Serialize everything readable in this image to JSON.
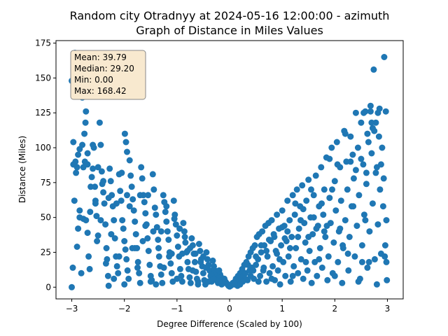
{
  "chart_data": {
    "type": "scatter",
    "title": "Random city Otradnyy at 2024-05-16 12:00:00  - azimuth",
    "subtitle": "Graph of Distance in Miles Values",
    "xlabel": "Degree Difference (Scaled by 100)",
    "ylabel": "Distance (Miles)",
    "xlim": [
      -3.3,
      3.3
    ],
    "ylim": [
      -8.4,
      176.8
    ],
    "xticks": [
      -3,
      -2,
      -1,
      0,
      1,
      2,
      3
    ],
    "yticks": [
      0,
      25,
      50,
      75,
      100,
      125,
      150,
      175
    ],
    "grid": false,
    "marker_color": "#1f77b4",
    "stats_box": {
      "lines": [
        "Mean: 39.79",
        "Median: 29.20",
        "Min: 0.00",
        "Max: 168.42"
      ],
      "facecolor": "#f8e9cf",
      "edgecolor": "#888888",
      "placement": "top-left"
    },
    "points": [
      [
        -3.0,
        0.0
      ],
      [
        -2.98,
        14
      ],
      [
        -3.0,
        148
      ],
      [
        -2.94,
        168
      ],
      [
        -2.8,
        136
      ],
      [
        -2.72,
        143
      ],
      [
        -2.75,
        147
      ],
      [
        -2.97,
        104
      ],
      [
        -2.95,
        62
      ],
      [
        -2.92,
        82
      ],
      [
        -2.9,
        29
      ],
      [
        -2.88,
        42
      ],
      [
        -2.85,
        55
      ],
      [
        -2.82,
        10
      ],
      [
        -2.97,
        88
      ],
      [
        -2.93,
        90
      ],
      [
        -2.9,
        86
      ],
      [
        -2.88,
        95
      ],
      [
        -2.85,
        99
      ],
      [
        -2.8,
        102
      ],
      [
        -2.78,
        86
      ],
      [
        -2.76,
        110
      ],
      [
        -2.74,
        118
      ],
      [
        -2.73,
        126
      ],
      [
        -2.7,
        88
      ],
      [
        -2.78,
        49
      ],
      [
        -2.73,
        48
      ],
      [
        -2.7,
        39
      ],
      [
        -2.68,
        22
      ],
      [
        -2.66,
        13
      ],
      [
        -2.64,
        72
      ],
      [
        -2.62,
        79
      ],
      [
        -2.6,
        85
      ],
      [
        -2.58,
        100
      ],
      [
        -2.56,
        72
      ],
      [
        -2.55,
        62
      ],
      [
        -2.53,
        51
      ],
      [
        -2.52,
        33
      ],
      [
        -2.5,
        37
      ],
      [
        -2.47,
        118
      ],
      [
        -2.45,
        102
      ],
      [
        -2.43,
        83
      ],
      [
        -2.42,
        74
      ],
      [
        -2.4,
        68
      ],
      [
        -2.38,
        60
      ],
      [
        -2.36,
        45
      ],
      [
        -2.34,
        28
      ],
      [
        -2.33,
        20
      ],
      [
        -2.31,
        8
      ],
      [
        -2.3,
        1
      ],
      [
        -2.28,
        85
      ],
      [
        -2.26,
        76
      ],
      [
        -2.24,
        66
      ],
      [
        -2.22,
        58
      ],
      [
        -2.2,
        48
      ],
      [
        -2.18,
        35
      ],
      [
        -2.16,
        22
      ],
      [
        -2.14,
        15
      ],
      [
        -2.12,
        10
      ],
      [
        -2.1,
        81
      ],
      [
        -2.08,
        69
      ],
      [
        -2.06,
        62
      ],
      [
        -2.04,
        48
      ],
      [
        -2.02,
        42
      ],
      [
        -2.0,
        33
      ],
      [
        -1.98,
        27
      ],
      [
        -1.96,
        20
      ],
      [
        -1.94,
        12
      ],
      [
        -1.92,
        6
      ],
      [
        -1.99,
        110
      ],
      [
        -1.97,
        104
      ],
      [
        -1.95,
        97
      ],
      [
        -1.9,
        91
      ],
      [
        -1.88,
        80
      ],
      [
        -1.86,
        72
      ],
      [
        -1.84,
        63
      ],
      [
        -1.82,
        55
      ],
      [
        -1.8,
        47
      ],
      [
        -1.78,
        38
      ],
      [
        -1.76,
        28
      ],
      [
        -1.74,
        18
      ],
      [
        -1.72,
        10
      ],
      [
        -1.7,
        3
      ],
      [
        -1.68,
        86
      ],
      [
        -1.66,
        78
      ],
      [
        -1.64,
        66
      ],
      [
        -1.62,
        61
      ],
      [
        -1.6,
        53
      ],
      [
        -1.58,
        45
      ],
      [
        -1.56,
        35
      ],
      [
        -1.54,
        26
      ],
      [
        -1.52,
        16
      ],
      [
        -1.5,
        8
      ],
      [
        -1.48,
        5
      ],
      [
        -1.46,
        81
      ],
      [
        -1.44,
        70
      ],
      [
        -1.42,
        57
      ],
      [
        -1.4,
        52
      ],
      [
        -1.38,
        43
      ],
      [
        -1.36,
        34
      ],
      [
        -1.34,
        22
      ],
      [
        -1.32,
        15
      ],
      [
        -1.3,
        9
      ],
      [
        -1.28,
        3
      ],
      [
        -1.26,
        66
      ],
      [
        -1.24,
        61
      ],
      [
        -1.22,
        54
      ],
      [
        -1.2,
        47
      ],
      [
        -1.18,
        40
      ],
      [
        -1.16,
        34
      ],
      [
        -1.14,
        25
      ],
      [
        -1.12,
        17
      ],
      [
        -1.1,
        10
      ],
      [
        -1.08,
        4
      ],
      [
        -1.06,
        62
      ],
      [
        -1.04,
        52
      ],
      [
        -1.02,
        45
      ],
      [
        -1.0,
        37
      ],
      [
        -0.98,
        29
      ],
      [
        -0.96,
        22
      ],
      [
        -0.94,
        13
      ],
      [
        -0.92,
        8
      ],
      [
        -0.9,
        4
      ],
      [
        -0.88,
        46
      ],
      [
        -0.86,
        40
      ],
      [
        -0.84,
        32
      ],
      [
        -0.82,
        25
      ],
      [
        -0.8,
        18
      ],
      [
        -0.78,
        13
      ],
      [
        -0.76,
        7
      ],
      [
        -0.74,
        3
      ],
      [
        -0.72,
        35
      ],
      [
        -0.7,
        30
      ],
      [
        -0.68,
        24
      ],
      [
        -0.66,
        18
      ],
      [
        -0.64,
        11
      ],
      [
        -0.62,
        6
      ],
      [
        -0.6,
        2
      ],
      [
        -0.58,
        31
      ],
      [
        -0.56,
        26
      ],
      [
        -0.54,
        20
      ],
      [
        -0.52,
        15
      ],
      [
        -0.5,
        10
      ],
      [
        -0.48,
        5
      ],
      [
        -0.46,
        2
      ],
      [
        -0.44,
        25
      ],
      [
        -0.42,
        20
      ],
      [
        -0.4,
        16
      ],
      [
        -0.38,
        12
      ],
      [
        -0.36,
        8
      ],
      [
        -0.34,
        4
      ],
      [
        -0.32,
        19
      ],
      [
        -0.3,
        15
      ],
      [
        -0.28,
        12
      ],
      [
        -0.26,
        9
      ],
      [
        -0.24,
        6
      ],
      [
        -0.22,
        3
      ],
      [
        -0.2,
        12
      ],
      [
        -0.18,
        9
      ],
      [
        -0.16,
        7
      ],
      [
        -0.14,
        5
      ],
      [
        -0.12,
        3
      ],
      [
        -0.1,
        6
      ],
      [
        -0.08,
        4
      ],
      [
        -0.06,
        3
      ],
      [
        -0.04,
        2
      ],
      [
        -0.02,
        1
      ],
      [
        0.0,
        0.5
      ],
      [
        0.02,
        1
      ],
      [
        0.04,
        2
      ],
      [
        0.06,
        3
      ],
      [
        0.08,
        2
      ],
      [
        0.1,
        4
      ],
      [
        0.12,
        6
      ],
      [
        0.14,
        3
      ],
      [
        0.16,
        8
      ],
      [
        0.18,
        5
      ],
      [
        0.2,
        10
      ],
      [
        0.22,
        6
      ],
      [
        0.24,
        13
      ],
      [
        0.26,
        8
      ],
      [
        0.28,
        16
      ],
      [
        0.3,
        10
      ],
      [
        0.32,
        18
      ],
      [
        0.34,
        5
      ],
      [
        0.36,
        22
      ],
      [
        0.38,
        12
      ],
      [
        0.4,
        25
      ],
      [
        0.42,
        14
      ],
      [
        0.44,
        28
      ],
      [
        0.46,
        6
      ],
      [
        0.48,
        30
      ],
      [
        0.5,
        16
      ],
      [
        0.52,
        36
      ],
      [
        0.54,
        20
      ],
      [
        0.56,
        38
      ],
      [
        0.58,
        8
      ],
      [
        0.6,
        25
      ],
      [
        0.62,
        40
      ],
      [
        0.64,
        12
      ],
      [
        0.66,
        30
      ],
      [
        0.68,
        44
      ],
      [
        0.7,
        4
      ],
      [
        0.72,
        22
      ],
      [
        0.74,
        46
      ],
      [
        0.76,
        10
      ],
      [
        0.78,
        33
      ],
      [
        0.8,
        48
      ],
      [
        0.82,
        15
      ],
      [
        0.84,
        38
      ],
      [
        0.86,
        5
      ],
      [
        0.88,
        26
      ],
      [
        0.9,
        52
      ],
      [
        0.92,
        12
      ],
      [
        0.94,
        42
      ],
      [
        0.96,
        2
      ],
      [
        0.98,
        30
      ],
      [
        1.0,
        55
      ],
      [
        1.02,
        18
      ],
      [
        1.04,
        44
      ],
      [
        1.06,
        8
      ],
      [
        1.08,
        33
      ],
      [
        1.1,
        62
      ],
      [
        1.12,
        22
      ],
      [
        1.14,
        48
      ],
      [
        1.16,
        4
      ],
      [
        1.18,
        36
      ],
      [
        1.2,
        66
      ],
      [
        1.22,
        15
      ],
      [
        1.24,
        52
      ],
      [
        1.26,
        28
      ],
      [
        1.28,
        70
      ],
      [
        1.3,
        10
      ],
      [
        1.32,
        42
      ],
      [
        1.34,
        58
      ],
      [
        1.36,
        20
      ],
      [
        1.38,
        73
      ],
      [
        1.4,
        6
      ],
      [
        1.42,
        46
      ],
      [
        1.44,
        32
      ],
      [
        1.46,
        62
      ],
      [
        1.48,
        12
      ],
      [
        1.5,
        77
      ],
      [
        1.52,
        26
      ],
      [
        1.54,
        50
      ],
      [
        1.56,
        3
      ],
      [
        1.58,
        38
      ],
      [
        1.6,
        66
      ],
      [
        1.62,
        18
      ],
      [
        1.64,
        80
      ],
      [
        1.66,
        8
      ],
      [
        1.68,
        44
      ],
      [
        1.7,
        58
      ],
      [
        1.72,
        28
      ],
      [
        1.74,
        86
      ],
      [
        1.76,
        14
      ],
      [
        1.78,
        52
      ],
      [
        1.8,
        70
      ],
      [
        1.82,
        36
      ],
      [
        1.84,
        93
      ],
      [
        1.86,
        5
      ],
      [
        1.88,
        22
      ],
      [
        1.9,
        64
      ],
      [
        1.92,
        46
      ],
      [
        1.94,
        100
      ],
      [
        1.96,
        10
      ],
      [
        1.98,
        32
      ],
      [
        2.0,
        76
      ],
      [
        2.02,
        55
      ],
      [
        2.04,
        104
      ],
      [
        2.06,
        18
      ],
      [
        2.08,
        40
      ],
      [
        2.1,
        86
      ],
      [
        2.12,
        62
      ],
      [
        2.14,
        3
      ],
      [
        2.16,
        28
      ],
      [
        2.18,
        112
      ],
      [
        2.2,
        48
      ],
      [
        2.22,
        90
      ],
      [
        2.24,
        70
      ],
      [
        2.26,
        12
      ],
      [
        2.28,
        36
      ],
      [
        2.3,
        108
      ],
      [
        2.32,
        58
      ],
      [
        2.34,
        95
      ],
      [
        2.36,
        78
      ],
      [
        2.38,
        22
      ],
      [
        2.4,
        125
      ],
      [
        2.42,
        44
      ],
      [
        2.44,
        100
      ],
      [
        2.46,
        66
      ],
      [
        2.48,
        6
      ],
      [
        2.5,
        118
      ],
      [
        2.52,
        30
      ],
      [
        2.54,
        88
      ],
      [
        2.56,
        52
      ],
      [
        2.58,
        126
      ],
      [
        2.6,
        74
      ],
      [
        2.62,
        14
      ],
      [
        2.64,
        104
      ],
      [
        2.66,
        40
      ],
      [
        2.68,
        130
      ],
      [
        2.7,
        96
      ],
      [
        2.72,
        60
      ],
      [
        2.74,
        156
      ],
      [
        2.76,
        20
      ],
      [
        2.78,
        118
      ],
      [
        2.8,
        86
      ],
      [
        2.82,
        45
      ],
      [
        2.84,
        108
      ],
      [
        2.86,
        70
      ],
      [
        2.88,
        24
      ],
      [
        2.9,
        100
      ],
      [
        2.92,
        58
      ],
      [
        2.94,
        165
      ],
      [
        2.96,
        30
      ],
      [
        2.97,
        126
      ],
      [
        2.98,
        48
      ],
      [
        2.99,
        5
      ],
      [
        2.98,
        18
      ],
      [
        2.95,
        22
      ],
      [
        2.93,
        78
      ],
      [
        2.88,
        88
      ],
      [
        2.85,
        128
      ],
      [
        2.82,
        125
      ],
      [
        2.8,
        2
      ],
      [
        2.78,
        82
      ],
      [
        2.75,
        112
      ],
      [
        2.72,
        114
      ],
      [
        2.7,
        118
      ],
      [
        2.68,
        126
      ],
      [
        2.65,
        18
      ],
      [
        2.62,
        110
      ],
      [
        2.6,
        82
      ],
      [
        2.58,
        48
      ],
      [
        2.55,
        125
      ],
      [
        2.52,
        18
      ],
      [
        2.5,
        92
      ],
      [
        2.45,
        4
      ],
      [
        2.4,
        84
      ],
      [
        2.35,
        58
      ],
      [
        2.3,
        90
      ],
      [
        2.25,
        24
      ],
      [
        2.2,
        110
      ],
      [
        2.15,
        30
      ],
      [
        2.1,
        42
      ],
      [
        2.05,
        88
      ],
      [
        2.0,
        8
      ],
      [
        1.95,
        70
      ],
      [
        1.9,
        92
      ],
      [
        1.85,
        44
      ],
      [
        1.8,
        40
      ],
      [
        1.75,
        60
      ],
      [
        1.7,
        20
      ],
      [
        1.65,
        42
      ],
      [
        1.6,
        50
      ],
      [
        1.55,
        70
      ],
      [
        1.5,
        36
      ],
      [
        1.45,
        18
      ],
      [
        1.4,
        56
      ],
      [
        1.35,
        48
      ],
      [
        1.3,
        36
      ],
      [
        1.25,
        60
      ],
      [
        1.2,
        8
      ],
      [
        1.15,
        28
      ],
      [
        1.1,
        40
      ],
      [
        1.05,
        35
      ],
      [
        1.0,
        43
      ],
      [
        0.95,
        20
      ],
      [
        0.9,
        24
      ],
      [
        0.85,
        36
      ],
      [
        0.8,
        6
      ],
      [
        0.75,
        34
      ],
      [
        0.7,
        26
      ],
      [
        0.65,
        14
      ],
      [
        0.6,
        30
      ],
      [
        0.55,
        4
      ],
      [
        0.5,
        22
      ],
      [
        0.45,
        12
      ],
      [
        0.4,
        8
      ],
      [
        0.35,
        16
      ],
      [
        0.3,
        6
      ],
      [
        0.25,
        4
      ],
      [
        0.2,
        2
      ],
      [
        0.15,
        1
      ],
      [
        0.1,
        2
      ],
      [
        -0.15,
        2
      ],
      [
        -0.25,
        5
      ],
      [
        -0.35,
        9
      ],
      [
        -0.45,
        14
      ],
      [
        -0.55,
        18
      ],
      [
        -0.65,
        24
      ],
      [
        -0.75,
        28
      ],
      [
        -0.85,
        36
      ],
      [
        -0.95,
        42
      ],
      [
        -1.05,
        49
      ],
      [
        -1.15,
        22
      ],
      [
        -1.25,
        14
      ],
      [
        -1.35,
        28
      ],
      [
        -1.45,
        40
      ],
      [
        -1.55,
        66
      ],
      [
        -1.65,
        33
      ],
      [
        -1.75,
        14
      ],
      [
        -1.85,
        28
      ],
      [
        -1.95,
        66
      ],
      [
        -2.05,
        82
      ],
      [
        -2.15,
        60
      ],
      [
        -2.25,
        38
      ],
      [
        -2.35,
        17
      ],
      [
        -2.45,
        48
      ],
      [
        -2.55,
        60
      ],
      [
        -2.65,
        54
      ],
      [
        -2.75,
        90
      ],
      [
        -2.85,
        50
      ],
      [
        -2.95,
        88
      ],
      [
        -2.5,
        86
      ],
      [
        -2.6,
        102
      ],
      [
        -2.7,
        96
      ],
      [
        -2.4,
        76
      ],
      [
        -2.3,
        64
      ],
      [
        -2.2,
        6
      ],
      [
        -2.1,
        22
      ],
      [
        -2.0,
        2
      ],
      [
        -1.9,
        58
      ],
      [
        -1.8,
        28
      ],
      [
        -1.7,
        66
      ],
      [
        -1.6,
        44
      ],
      [
        -1.5,
        4
      ],
      [
        -1.4,
        2
      ],
      [
        -1.3,
        40
      ],
      [
        -1.2,
        58
      ],
      [
        -1.1,
        24
      ],
      [
        -1.0,
        6
      ],
      [
        -0.9,
        24
      ],
      [
        -0.8,
        26
      ],
      [
        -0.7,
        12
      ],
      [
        -0.6,
        4
      ],
      [
        -0.5,
        22
      ],
      [
        -0.4,
        4
      ],
      [
        -0.3,
        6
      ],
      [
        -0.2,
        4
      ]
    ]
  }
}
